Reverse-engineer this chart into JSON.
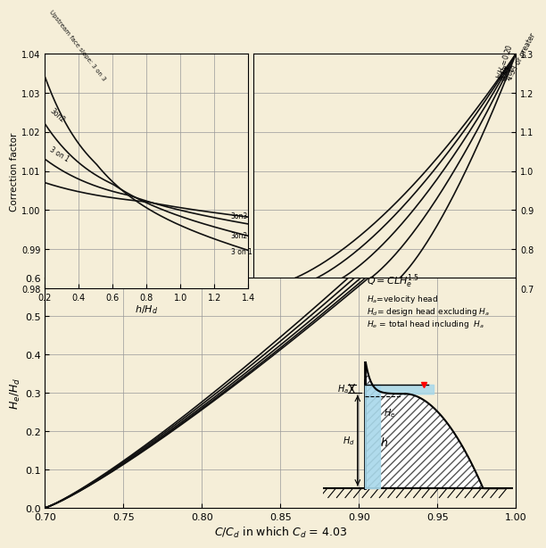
{
  "bg_color": "#f5eed8",
  "grid_color": "#999999",
  "line_color": "#111111",
  "tl_xlim": [
    0.2,
    1.4
  ],
  "tl_ylim": [
    0.98,
    1.04
  ],
  "tl_xticks": [
    0.2,
    0.4,
    0.6,
    0.8,
    1.0,
    1.2,
    1.4
  ],
  "tl_yticks": [
    0.98,
    0.99,
    1.0,
    1.01,
    1.02,
    1.03,
    1.04
  ],
  "tr_xlim": [
    0.9,
    1.0
  ],
  "tr_ylim": [
    0.7,
    1.3
  ],
  "tr_yticks": [
    0.7,
    0.8,
    0.9,
    1.0,
    1.1,
    1.2,
    1.3
  ],
  "main_xlim": [
    0.7,
    1.0
  ],
  "main_ylim": [
    0.0,
    0.6
  ],
  "main_xticks": [
    0.7,
    0.75,
    0.8,
    0.85,
    0.9,
    0.95,
    1.0
  ],
  "main_yticks": [
    0.0,
    0.1,
    0.2,
    0.3,
    0.4,
    0.5,
    0.6
  ],
  "water_color": "#a8d8ea",
  "hatch_color": "#555555"
}
